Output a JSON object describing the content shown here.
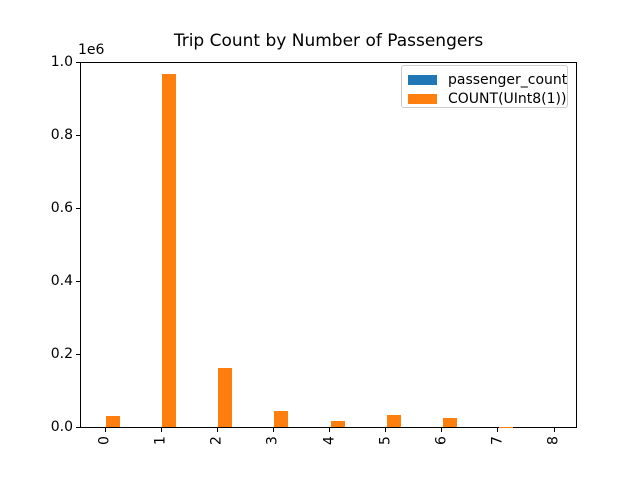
{
  "chart_data": {
    "type": "bar",
    "title": "Trip Count by Number of Passengers",
    "y_offset_label": "1e6",
    "xlabel": "",
    "ylabel": "",
    "categories": [
      "0",
      "1",
      "2",
      "3",
      "4",
      "5",
      "6",
      "7",
      "8"
    ],
    "series": [
      {
        "name": "passenger_count",
        "color": "#1f77b4",
        "values": [
          0,
          1,
          2,
          3,
          4,
          5,
          6,
          7,
          8
        ]
      },
      {
        "name": "COUNT(UInt8(1))",
        "color": "#ff7f0e",
        "values": [
          31000,
          967000,
          161000,
          45000,
          16000,
          34000,
          25000,
          400,
          100
        ]
      }
    ],
    "ylim": [
      0,
      1000000
    ],
    "yticks": [
      {
        "label": "0.0",
        "value": 0
      },
      {
        "label": "0.2",
        "value": 200000
      },
      {
        "label": "0.4",
        "value": 400000
      },
      {
        "label": "0.6",
        "value": 600000
      },
      {
        "label": "0.8",
        "value": 800000
      },
      {
        "label": "1.0",
        "value": 1000000
      }
    ],
    "xtick_rotation": 90,
    "legend_position": "upper right",
    "grid": false
  }
}
